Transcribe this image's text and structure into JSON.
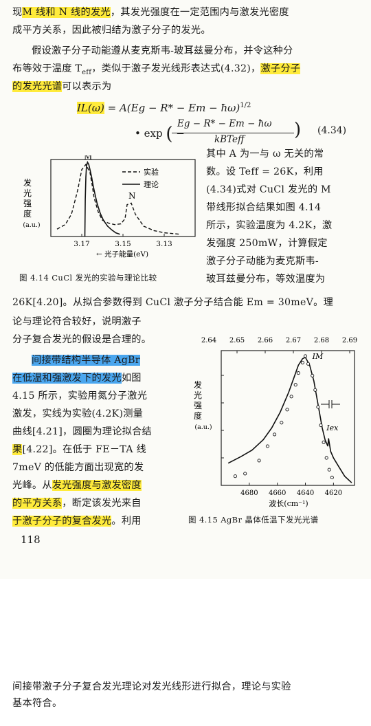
{
  "body": {
    "lines": [
      [
        {
          "t": "现"
        },
        {
          "t": "M 线和 N 线的发光",
          "hl": "y"
        },
        {
          "t": "，其发光强度在一定范围内与激发光密度"
        }
      ],
      [
        {
          "t": "成平方关系，因此被归结为激子分子的发光。"
        }
      ],
      [
        {
          "t": "假设激子分子动能遵从麦克斯韦-玻耳兹曼分布，并令这种分"
        }
      ],
      [
        {
          "t": "布等效于温度 T"
        },
        {
          "t": "eff",
          "sub": true
        },
        {
          "t": "，类似于激子发光线形表达式(4.32)，"
        },
        {
          "t": "激子分子",
          "hl": "y"
        }
      ],
      [
        {
          "t": "的发光光谱",
          "hl": "y"
        },
        {
          "t": "可以表示为"
        }
      ]
    ],
    "right_lines": [
      "其中 A 为一与 ω 无关的常",
      "数。设 Teff = 26K，利用",
      "(4.34)式对 CuCl 发光的 M",
      "带线形拟合结果如图 4.14",
      "所示，实验温度为 4.2K，激",
      "发强度 250mW，计算假定",
      "激子分子动能为麦克斯韦-",
      "玻耳兹曼分布，等效温度为"
    ],
    "full_line": "26K[4.20]。从拟合参数得到 CuCl 激子分子结合能 Em = 30meV。理",
    "left_lines": [
      [
        {
          "t": "论与理论符合较好，说明激子"
        }
      ],
      [
        {
          "t": "分子复合发光的假设是合理的。"
        }
      ],
      [
        {
          "t": "间接带结构半导体 AgBr",
          "hl": "b"
        }
      ],
      [
        {
          "t": "在低温和强激发下的发光",
          "hl": "b"
        },
        {
          "t": "如图"
        }
      ],
      [
        {
          "t": "4.15 所示，实验用氮分子激光"
        }
      ],
      [
        {
          "t": "激发，实线为实验(4.2K)测量"
        }
      ],
      [
        {
          "t": "曲线[4.21]，圆圈为理论拟合结"
        }
      ],
      [
        {
          "t": "果",
          "hl": "y"
        },
        {
          "t": "[4.22]。在低于 FE－TA 线"
        }
      ],
      [
        {
          "t": "7meV 的低能方面出现宽的发"
        }
      ],
      [
        {
          "t": "光峰。从"
        },
        {
          "t": "发光强度与激发密度",
          "hl": "y"
        }
      ],
      [
        {
          "t": "的平方关系",
          "hl": "y"
        },
        {
          "t": "，断定该发光来自"
        }
      ],
      [
        {
          "t": "于激子分子的复合发光",
          "hl": "y"
        },
        {
          "t": "。利用"
        }
      ]
    ],
    "page_number": "118",
    "continuation": [
      "间接带激子分子复合发光理论对发光线形进行拟合，理论与实验",
      "基本符合。"
    ]
  },
  "equation": {
    "lhs": "IL(ω)",
    "rhs1": "= A(Eg − R* − Em − ħω)",
    "exp1": "1/2",
    "rhs2_prefix": "• exp",
    "numerator": "Eg − R* − Em − ħω",
    "denominator": "kBTeff",
    "number": "(4.34)"
  },
  "fig14": {
    "ylabel_lines": [
      "发",
      "光",
      "强",
      "度",
      "(a.u.)"
    ],
    "ticks": [
      "3.17",
      "3.15",
      "3.13"
    ],
    "xlabel": "← 光子能量(eV)",
    "peak_m": "M",
    "peak_n": "N",
    "legend_exp": "实验",
    "legend_theory": "理论",
    "caption": "图 4.14   CuCl 发光的实验与理论比较"
  },
  "fig15": {
    "top_ticks": [
      "2.64",
      "2.65",
      "2.66",
      "2.67",
      "2.68",
      "2.69"
    ],
    "bottom_ticks": [
      "4680",
      "4660",
      "4640",
      "4620"
    ],
    "ylabel_lines": [
      "发",
      "光",
      "强",
      "度",
      "(a.u.)"
    ],
    "xlabel": "波长(cm⁻¹)",
    "peak_m": "IM",
    "peak_ex": "Iex",
    "caption": "图 4.15   AgBr 晶体低温下发光光谱"
  },
  "chart_data": [
    {
      "type": "line",
      "xlabel": "← 光子能量(eV)",
      "ylabel": "发光强度(a.u.)",
      "xlim": [
        3.185,
        3.115
      ],
      "x_ticks": [
        3.17,
        3.15,
        3.13
      ],
      "series": [
        {
          "name": "实验",
          "style": "dashed",
          "x": [
            3.182,
            3.178,
            3.175,
            3.172,
            3.17,
            3.168,
            3.166,
            3.165,
            3.164,
            3.162,
            3.16,
            3.157,
            3.154,
            3.151,
            3.149,
            3.148,
            3.146,
            3.144,
            3.14,
            3.135,
            3.13,
            3.122
          ],
          "y": [
            0.1,
            0.16,
            0.3,
            0.62,
            0.9,
            0.97,
            0.86,
            0.7,
            0.52,
            0.33,
            0.22,
            0.18,
            0.16,
            0.17,
            0.24,
            0.43,
            0.45,
            0.3,
            0.14,
            0.08,
            0.05,
            0.03
          ]
        },
        {
          "name": "理论",
          "style": "solid",
          "x": [
            3.1685,
            3.1683,
            3.168,
            3.1677,
            3.1672,
            3.1666,
            3.166,
            3.1652,
            3.1645,
            3.1635,
            3.1625,
            3.161,
            3.1595,
            3.1575,
            3.1555,
            3.1535,
            3.1515
          ],
          "y": [
            0.0,
            0.5,
            0.8,
            0.95,
            1.0,
            0.97,
            0.9,
            0.8,
            0.69,
            0.56,
            0.44,
            0.31,
            0.22,
            0.14,
            0.09,
            0.05,
            0.03
          ]
        }
      ]
    },
    {
      "type": "line",
      "xlabel": "波长(cm⁻¹)",
      "ylabel": "发光强度(a.u.)",
      "xlim": [
        4700,
        4605
      ],
      "x_ticks": [
        4680,
        4660,
        4640,
        4620
      ],
      "top_axis_ticks": [
        2.64,
        2.65,
        2.66,
        2.67,
        2.68,
        2.69
      ],
      "series": [
        {
          "name": "实验",
          "style": "solid",
          "x": [
            4695,
            4686,
            4678,
            4670,
            4664,
            4658,
            4652,
            4648,
            4645,
            4642,
            4640,
            4637,
            4634,
            4631,
            4628,
            4626,
            4624,
            4623.5,
            4622,
            4620,
            4616,
            4612,
            4607
          ],
          "y": [
            0.17,
            0.22,
            0.27,
            0.35,
            0.44,
            0.56,
            0.71,
            0.83,
            0.92,
            0.97,
            0.98,
            0.92,
            0.8,
            0.62,
            0.44,
            0.35,
            0.3,
            0.36,
            0.26,
            0.21,
            0.14,
            0.07,
            0.02
          ]
        },
        {
          "name": "理论",
          "style": "circles",
          "x": [
            4690,
            4683,
            4673,
            4667,
            4662,
            4657,
            4653,
            4650,
            4647,
            4645,
            4642,
            4640,
            4638,
            4635,
            4633,
            4631,
            4629,
            4627,
            4625,
            4623,
            4621
          ],
          "y": [
            0.07,
            0.09,
            0.19,
            0.3,
            0.39,
            0.48,
            0.58,
            0.68,
            0.77,
            0.86,
            0.94,
            0.99,
            0.93,
            0.84,
            0.73,
            0.6,
            0.46,
            0.33,
            0.21,
            0.12,
            0.06
          ]
        }
      ]
    }
  ]
}
